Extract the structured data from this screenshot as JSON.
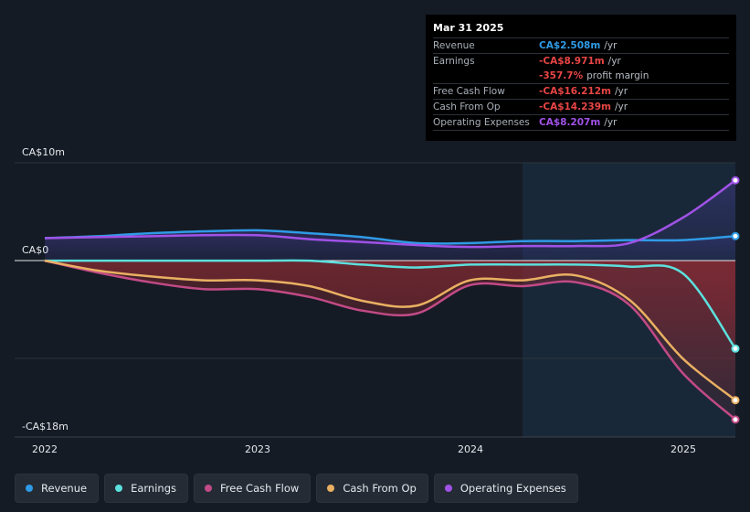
{
  "chart_data": {
    "type": "area",
    "x_dates": [
      "2021-12-31",
      "2022-03-31",
      "2022-06-30",
      "2022-09-30",
      "2022-12-31",
      "2023-03-31",
      "2023-06-30",
      "2023-09-30",
      "2023-12-31",
      "2024-03-31",
      "2024-06-30",
      "2024-09-30",
      "2024-12-31",
      "2025-03-31"
    ],
    "x_ticks": [
      "2022",
      "2023",
      "2024",
      "2025"
    ],
    "y_ticks": [
      "CA$10m",
      "CA$0",
      "-CA$18m"
    ],
    "ylim": [
      -18,
      10
    ],
    "ylabel": "",
    "xlabel": "",
    "forecast_start": "2024-03-31",
    "series": [
      {
        "name": "Revenue",
        "color": "#2f9be6",
        "values": [
          2.3,
          2.5,
          2.8,
          3.0,
          3.1,
          2.8,
          2.4,
          1.8,
          1.8,
          2.0,
          2.0,
          2.1,
          2.1,
          2.508
        ]
      },
      {
        "name": "Earnings",
        "color": "#5ce0dd",
        "values": [
          0.0,
          0.0,
          0.0,
          0.0,
          0.0,
          0.0,
          -0.4,
          -0.7,
          -0.4,
          -0.4,
          -0.4,
          -0.6,
          -1.3,
          -8.971
        ]
      },
      {
        "name": "Free Cash Flow",
        "color": "#c24a87",
        "values": [
          0.0,
          -1.2,
          -2.2,
          -2.9,
          -2.9,
          -3.7,
          -5.1,
          -5.4,
          -2.5,
          -2.6,
          -2.2,
          -4.5,
          -11.5,
          -16.212
        ]
      },
      {
        "name": "Cash From Op",
        "color": "#e9b062",
        "values": [
          0.0,
          -1.0,
          -1.6,
          -2.0,
          -2.0,
          -2.6,
          -4.1,
          -4.6,
          -2.0,
          -2.0,
          -1.5,
          -4.0,
          -10.0,
          -14.239
        ]
      },
      {
        "name": "Operating Expenses",
        "color": "#a052e6",
        "values": [
          2.3,
          2.4,
          2.5,
          2.6,
          2.6,
          2.2,
          1.9,
          1.6,
          1.4,
          1.5,
          1.5,
          1.8,
          4.4,
          8.207
        ]
      }
    ]
  },
  "tooltip": {
    "date": "Mar 31 2025",
    "rows": [
      {
        "label": "Revenue",
        "value": "CA$2.508m",
        "unit": "/yr",
        "color": "#2f9be6"
      },
      {
        "label": "Earnings",
        "value": "-CA$8.971m",
        "unit": "/yr",
        "color": "#e84545"
      },
      {
        "label": "",
        "value": "-357.7%",
        "unit": "profit margin",
        "color": "#e84545"
      },
      {
        "label": "Free Cash Flow",
        "value": "-CA$16.212m",
        "unit": "/yr",
        "color": "#e84545"
      },
      {
        "label": "Cash From Op",
        "value": "-CA$14.239m",
        "unit": "/yr",
        "color": "#e84545"
      },
      {
        "label": "Operating Expenses",
        "value": "CA$8.207m",
        "unit": "/yr",
        "color": "#a052e6"
      }
    ]
  },
  "legend": [
    {
      "label": "Revenue",
      "color": "#2f9be6"
    },
    {
      "label": "Earnings",
      "color": "#5ce0dd"
    },
    {
      "label": "Free Cash Flow",
      "color": "#c24a87"
    },
    {
      "label": "Cash From Op",
      "color": "#e9b062"
    },
    {
      "label": "Operating Expenses",
      "color": "#a052e6"
    }
  ]
}
